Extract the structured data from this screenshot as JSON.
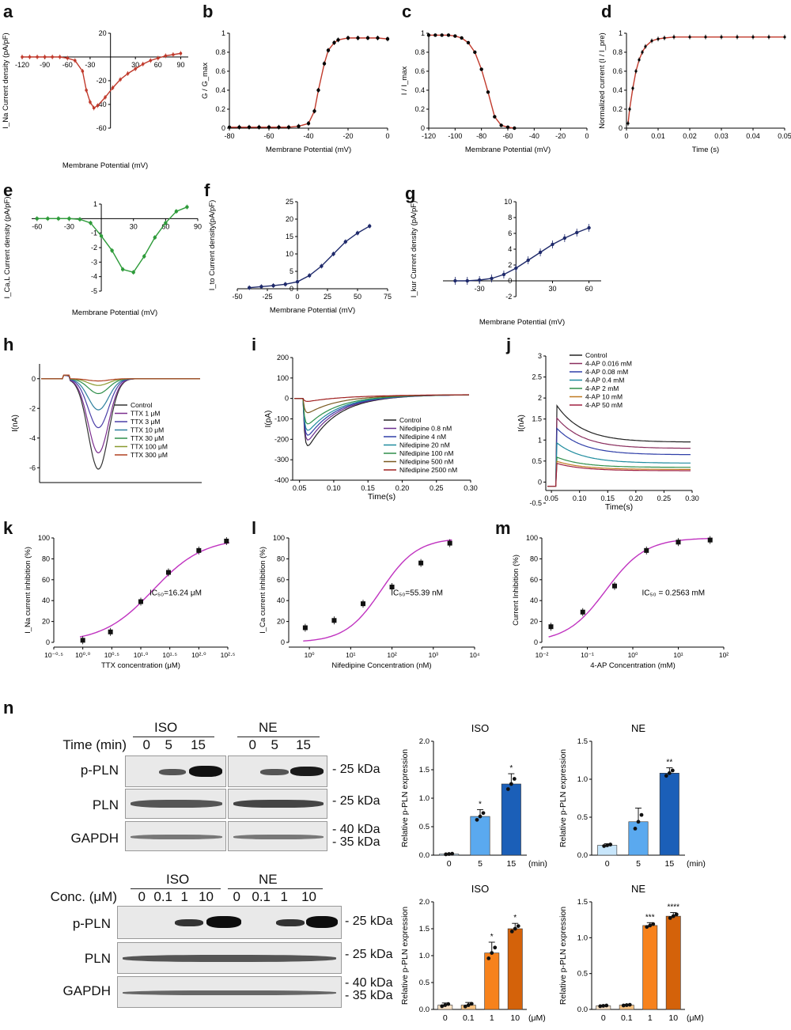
{
  "figure": {
    "panel_letters": [
      "a",
      "b",
      "c",
      "d",
      "e",
      "f",
      "g",
      "h",
      "i",
      "j",
      "k",
      "l",
      "m",
      "n"
    ]
  },
  "chart_data": [
    {
      "id": "a",
      "type": "line",
      "ylabel": "I_Na Current density (pA/pF)",
      "xlabel": "Membrane Potential (mV)",
      "xlim": [
        -120,
        100
      ],
      "ylim": [
        -60,
        20
      ],
      "xticks": [
        -120,
        -90,
        -60,
        -30,
        30,
        60,
        90
      ],
      "yticks": [
        -60,
        -40,
        -20,
        20
      ],
      "x": [
        -120,
        -110,
        -100,
        -90,
        -80,
        -70,
        -60,
        -50,
        -40,
        -35,
        -30,
        -25,
        -20,
        -10,
        0,
        10,
        20,
        30,
        40,
        50,
        60,
        70,
        80,
        90
      ],
      "y": [
        0,
        0,
        0,
        0,
        0,
        0,
        -1,
        -3,
        -12,
        -28,
        -38,
        -43,
        -41,
        -34,
        -26,
        -19,
        -14,
        -10,
        -6,
        -3,
        -1,
        1,
        2,
        3
      ],
      "color": "#c0392b"
    },
    {
      "id": "b",
      "type": "line",
      "ylabel": "G / G_max",
      "xlabel": "Membrane Potential (mV)",
      "xlim": [
        -80,
        0
      ],
      "ylim": [
        0,
        1.0
      ],
      "xticks": [
        -80,
        -60,
        -40,
        -20,
        0
      ],
      "yticks": [
        0,
        0.2,
        0.4,
        0.6,
        0.8,
        1.0
      ],
      "x": [
        -80,
        -75,
        -70,
        -65,
        -60,
        -55,
        -50,
        -45,
        -40,
        -37,
        -35,
        -32,
        -30,
        -27,
        -25,
        -20,
        -15,
        -10,
        -5,
        0
      ],
      "y": [
        0.01,
        0.01,
        0.01,
        0.01,
        0.01,
        0.01,
        0.01,
        0.02,
        0.05,
        0.18,
        0.4,
        0.68,
        0.82,
        0.9,
        0.93,
        0.95,
        0.95,
        0.95,
        0.95,
        0.94
      ],
      "color": "#c0392b"
    },
    {
      "id": "c",
      "type": "line",
      "ylabel": "I / I_max",
      "xlabel": "Membrane Potential (mV)",
      "xlim": [
        -120,
        0
      ],
      "ylim": [
        0,
        1.0
      ],
      "xticks": [
        -120,
        -100,
        -80,
        -60,
        -40,
        -20,
        0
      ],
      "yticks": [
        0,
        0.2,
        0.4,
        0.6,
        0.8,
        1.0
      ],
      "x": [
        -120,
        -115,
        -110,
        -105,
        -100,
        -95,
        -90,
        -85,
        -80,
        -75,
        -70,
        -65,
        -60,
        -55
      ],
      "y": [
        0.98,
        0.98,
        0.98,
        0.98,
        0.97,
        0.95,
        0.9,
        0.8,
        0.62,
        0.38,
        0.12,
        0.03,
        0.01,
        0.0
      ],
      "color": "#c0392b"
    },
    {
      "id": "d",
      "type": "line",
      "ylabel": "Normalized current (I / I_pre)",
      "xlabel": "Time (s)",
      "xlim": [
        0,
        0.05
      ],
      "ylim": [
        0,
        1.0
      ],
      "xticks": [
        0.0,
        0.01,
        0.02,
        0.03,
        0.04,
        0.05
      ],
      "yticks": [
        0,
        0.2,
        0.4,
        0.6,
        0.8,
        1.0
      ],
      "x": [
        0.0005,
        0.001,
        0.002,
        0.003,
        0.004,
        0.005,
        0.006,
        0.008,
        0.01,
        0.012,
        0.015,
        0.02,
        0.025,
        0.03,
        0.035,
        0.04,
        0.045,
        0.05
      ],
      "y": [
        0.05,
        0.2,
        0.42,
        0.6,
        0.72,
        0.8,
        0.86,
        0.92,
        0.94,
        0.95,
        0.96,
        0.96,
        0.96,
        0.96,
        0.96,
        0.96,
        0.96,
        0.96
      ],
      "color": "#c0392b"
    },
    {
      "id": "e",
      "type": "line",
      "ylabel": "I_Ca,L Current density (pA/pF)",
      "xlabel": "Membrane Potential (mV)",
      "xlim": [
        -65,
        90
      ],
      "ylim": [
        -5,
        1
      ],
      "xticks": [
        -60,
        -30,
        30,
        60,
        90
      ],
      "yticks": [
        -5,
        -4,
        -3,
        -2,
        -1,
        1
      ],
      "x": [
        -60,
        -50,
        -40,
        -30,
        -20,
        -10,
        0,
        10,
        20,
        30,
        40,
        50,
        60,
        70,
        80
      ],
      "y": [
        0,
        0,
        0,
        0,
        -0.05,
        -0.3,
        -1.2,
        -2.2,
        -3.5,
        -3.7,
        -2.6,
        -1.3,
        -0.3,
        0.5,
        0.8
      ],
      "color": "#2e9b3a"
    },
    {
      "id": "f",
      "type": "line",
      "ylabel": "I_to Current density(pA/pF)",
      "xlabel": "Membrane Potential (mV)",
      "xlim": [
        -50,
        75
      ],
      "ylim": [
        0,
        25
      ],
      "xticks": [
        -50,
        -25,
        0,
        25,
        50,
        75
      ],
      "yticks": [
        0,
        5,
        10,
        15,
        20,
        25
      ],
      "x": [
        -40,
        -30,
        -20,
        -10,
        0,
        10,
        20,
        30,
        40,
        50,
        60
      ],
      "y": [
        0.3,
        0.6,
        0.9,
        1.3,
        2.0,
        3.8,
        6.5,
        10.0,
        13.5,
        16.0,
        18.0
      ],
      "color": "#1f2a6b"
    },
    {
      "id": "g",
      "type": "line",
      "ylabel": "I_kur Current density (pA/pF)",
      "xlabel": "Membrane Potential (mV)",
      "xlim": [
        -60,
        70
      ],
      "ylim": [
        -2,
        10
      ],
      "xticks": [
        -30,
        30,
        60
      ],
      "yticks": [
        -2,
        0,
        2,
        4,
        6,
        8,
        10
      ],
      "x": [
        -50,
        -40,
        -30,
        -20,
        -10,
        0,
        10,
        20,
        30,
        40,
        50,
        60
      ],
      "y": [
        0,
        0,
        0.1,
        0.3,
        0.8,
        1.6,
        2.6,
        3.6,
        4.6,
        5.4,
        6.1,
        6.7
      ],
      "color": "#1f2a6b"
    },
    {
      "id": "h",
      "type": "line",
      "ylabel": "I(nA)",
      "xlabel": "",
      "ylim": [
        -7,
        1
      ],
      "yticks": [
        -6,
        -4,
        -2,
        0
      ],
      "legend": [
        "Control",
        "TTX 1 μM",
        "TTX 3 μM",
        "TTX 10 μM",
        "TTX 30 μM",
        "TTX 100 μM",
        "TTX 300 μM"
      ],
      "peaks": [
        -6.1,
        -5.0,
        -3.3,
        -2.1,
        -1.0,
        -0.45,
        -0.15
      ],
      "colors": [
        "#333333",
        "#7b2e8e",
        "#4b3fa8",
        "#2e7f9e",
        "#2f8f4a",
        "#8a9a2f",
        "#b04020"
      ]
    },
    {
      "id": "i",
      "type": "line",
      "ylabel": "I(pA)",
      "xlabel": "Time(s)",
      "xlim": [
        0.04,
        0.3
      ],
      "ylim": [
        -400,
        200
      ],
      "xticks": [
        0.05,
        0.1,
        0.15,
        0.2,
        0.25,
        0.3
      ],
      "yticks": [
        -400,
        -300,
        -200,
        -100,
        0,
        100,
        200
      ],
      "legend": [
        "Control",
        "Nifedipine 0.8 nM",
        "Nifedipine 4 nM",
        "Nifedipine 20 nM",
        "Nifedipine 100 nM",
        "Nifedipine 500 nM",
        "Nifedipine 2500 nM"
      ],
      "peaks": [
        -295,
        -260,
        -230,
        -200,
        -160,
        -90,
        -20
      ],
      "colors": [
        "#222222",
        "#6a2e8e",
        "#2f3fa8",
        "#1f8c9e",
        "#2f8f4a",
        "#7a5a20",
        "#a02020"
      ]
    },
    {
      "id": "j",
      "type": "line",
      "ylabel": "I(nA)",
      "xlabel": "Time(s)",
      "xlim": [
        0.04,
        0.3
      ],
      "ylim": [
        -0.2,
        3.0
      ],
      "xticks": [
        0.05,
        0.1,
        0.15,
        0.2,
        0.25,
        0.3
      ],
      "yticks": [
        -0.5,
        0,
        0.5,
        1.0,
        1.5,
        2.0,
        2.5,
        3.0
      ],
      "legend": [
        "Control",
        "4-AP 0.016 mM",
        "4-AP 0.08 mM",
        "4-AP 0.4 mM",
        "4-AP 2 mM",
        "4-AP 10 mM",
        "4-AP 50 mM"
      ],
      "peaks": [
        1.85,
        1.55,
        1.3,
        0.95,
        0.6,
        0.5,
        0.45
      ],
      "steady": [
        0.95,
        0.8,
        0.65,
        0.45,
        0.35,
        0.3,
        0.27
      ],
      "colors": [
        "#222222",
        "#8a2e5e",
        "#2f3fa8",
        "#1f8c9e",
        "#2f8f4a",
        "#c07a20",
        "#a02040"
      ]
    },
    {
      "id": "k",
      "type": "scatter",
      "ylabel": "I_Na current inhibition (%)",
      "xlabel": "TTX concentration (μM)",
      "annotation": "IC₅₀=16.24 μM",
      "xscale": "log",
      "xlim": [
        -0.5,
        2.5
      ],
      "ylim": [
        0,
        100
      ],
      "xticks": [
        "10⁻⁰·⁵",
        "10⁰·⁰",
        "10⁰·⁵",
        "10¹·⁰",
        "10¹·⁵",
        "10²·⁰",
        "10²·⁵"
      ],
      "yticks": [
        0,
        20,
        40,
        60,
        80,
        100
      ],
      "x": [
        0,
        0.477,
        1,
        1.477,
        2,
        2.477
      ],
      "y": [
        2,
        10,
        39,
        67,
        88,
        97
      ],
      "ic50_log": 1.21
    },
    {
      "id": "l",
      "type": "scatter",
      "ylabel": "I_Ca current inhibition (%)",
      "xlabel": "Nifedipine Concentration (nM)",
      "annotation": "IC₅₀=55.39 nM",
      "xscale": "log",
      "xlim": [
        -0.5,
        4
      ],
      "ylim": [
        0,
        100
      ],
      "xticks": [
        "10⁰",
        "10¹",
        "10²",
        "10³",
        "10⁴"
      ],
      "yticks": [
        0,
        20,
        40,
        60,
        80,
        100
      ],
      "x": [
        -0.1,
        0.6,
        1.3,
        2,
        2.7,
        3.4
      ],
      "y": [
        14,
        21,
        37,
        53,
        76,
        95
      ],
      "ic50_log": 1.74
    },
    {
      "id": "m",
      "type": "scatter",
      "ylabel": "Current Inhibition (%)",
      "xlabel": "4-AP Concentration (mM)",
      "annotation": "IC₅₀ = 0.2563 mM",
      "xscale": "log",
      "xlim": [
        -2,
        2
      ],
      "ylim": [
        0,
        100
      ],
      "xticks": [
        "10⁻²",
        "10⁻¹",
        "10⁰",
        "10¹",
        "10²"
      ],
      "yticks": [
        0,
        20,
        40,
        60,
        80,
        100
      ],
      "x": [
        -1.8,
        -1.1,
        -0.4,
        0.3,
        1,
        1.7
      ],
      "y": [
        15,
        29,
        54,
        88,
        96,
        98
      ],
      "ic50_log": -0.59
    },
    {
      "id": "n1",
      "type": "bar",
      "title": "ISO",
      "ylabel": "Relative p-PLN expression",
      "categories": [
        "0",
        "5",
        "15"
      ],
      "unit": "(min)",
      "values": [
        0.02,
        0.68,
        1.25
      ],
      "errors": [
        0.01,
        0.12,
        0.18
      ],
      "sig": [
        "",
        "*",
        "*"
      ],
      "ylim": [
        0,
        2.0
      ],
      "yticks": [
        0,
        0.5,
        1.0,
        1.5,
        2.0
      ],
      "colors": [
        "#c8e6fb",
        "#5aa9ef",
        "#1b5fb8"
      ]
    },
    {
      "id": "n2",
      "type": "bar",
      "title": "NE",
      "ylabel": "Relative p-PLN expression",
      "categories": [
        "0",
        "5",
        "15"
      ],
      "unit": "(min)",
      "values": [
        0.13,
        0.44,
        1.08
      ],
      "errors": [
        0.02,
        0.18,
        0.07
      ],
      "sig": [
        "",
        "",
        "**"
      ],
      "ylim": [
        0,
        1.5
      ],
      "yticks": [
        0,
        0.5,
        1.0,
        1.5
      ],
      "colors": [
        "#c8e6fb",
        "#5aa9ef",
        "#1b5fb8"
      ]
    },
    {
      "id": "n3",
      "type": "bar",
      "title": "ISO",
      "ylabel": "Relative p-PLN expression",
      "categories": [
        "0",
        "0.1",
        "1",
        "10"
      ],
      "unit": "(μM)",
      "values": [
        0.08,
        0.08,
        1.05,
        1.5
      ],
      "errors": [
        0.04,
        0.05,
        0.2,
        0.1
      ],
      "sig": [
        "",
        "",
        "*",
        "*"
      ],
      "ylim": [
        0,
        2.0
      ],
      "yticks": [
        0,
        0.5,
        1.0,
        1.5,
        2.0
      ],
      "colors": [
        "#fde3c6",
        "#fbc482",
        "#f7821c",
        "#d4620a"
      ]
    },
    {
      "id": "n4",
      "type": "bar",
      "title": "NE",
      "ylabel": "Relative p-PLN expression",
      "categories": [
        "0",
        "0.1",
        "1",
        "10"
      ],
      "unit": "(μM)",
      "values": [
        0.05,
        0.06,
        1.17,
        1.3
      ],
      "errors": [
        0.01,
        0.01,
        0.04,
        0.05
      ],
      "sig": [
        "",
        "",
        "***",
        "****"
      ],
      "ylim": [
        0,
        1.5
      ],
      "yticks": [
        0,
        0.5,
        1.0,
        1.5
      ],
      "colors": [
        "#fde3c6",
        "#fbc482",
        "#f7821c",
        "#d4620a"
      ]
    }
  ],
  "western": {
    "top": {
      "group1": "ISO",
      "group2": "NE",
      "cond_label": "Time (min)",
      "lanes1": [
        "0",
        "5",
        "15"
      ],
      "lanes2": [
        "0",
        "5",
        "15"
      ],
      "rows": [
        "p-PLN",
        "PLN",
        "GAPDH"
      ],
      "kda": [
        "- 25 kDa",
        "- 25 kDa",
        "- 40 kDa",
        "- 35 kDa"
      ]
    },
    "bottom": {
      "group1": "ISO",
      "group2": "NE",
      "cond_label": "Conc. (μM)",
      "lanes1": [
        "0",
        "0.1",
        "1",
        "10"
      ],
      "lanes2": [
        "0",
        "0.1",
        "1",
        "10"
      ],
      "rows": [
        "p-PLN",
        "PLN",
        "GAPDH"
      ],
      "kda": [
        "- 25 kDa",
        "- 25 kDa",
        "- 40 kDa",
        "- 35 kDa"
      ]
    }
  }
}
